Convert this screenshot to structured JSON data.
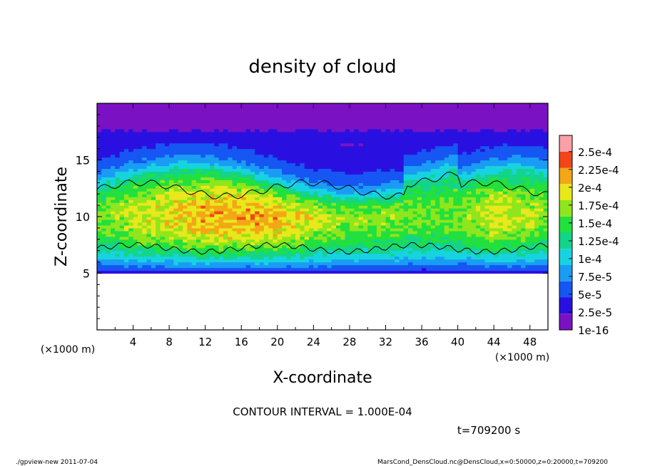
{
  "chart_data": {
    "type": "heatmap",
    "title": "density of cloud",
    "xlabel": "X-coordinate",
    "ylabel": "Z-coordinate",
    "x_unit": "(×1000 m)",
    "z_unit": "(×1000 m)",
    "xlim": [
      0,
      50
    ],
    "zlim": [
      0,
      20
    ],
    "x_ticks": [
      4,
      8,
      12,
      16,
      20,
      24,
      28,
      32,
      36,
      40,
      44,
      48
    ],
    "z_ticks": [
      5,
      10,
      15
    ],
    "grid": false,
    "colorbar": {
      "labels": [
        "1e-16",
        "2.5e-5",
        "5e-5",
        "7.5e-5",
        "1e-4",
        "1.25e-4",
        "1.5e-4",
        "1.75e-4",
        "2e-4",
        "2.25e-4",
        "2.5e-4"
      ],
      "colors": [
        "#7a12c4",
        "#2a10e0",
        "#1656f2",
        "#1a9cf5",
        "#17d3e0",
        "#13d48a",
        "#22e03d",
        "#8fe61c",
        "#e8e81a",
        "#f3a716",
        "#f2461a",
        "#fba0a8"
      ]
    },
    "field": {
      "description_levels": "cloud density, max ~2.1e-4 near z=10 km",
      "cloud_base_z": 5,
      "cloud_core_z": 10,
      "cloud_top_z": 13,
      "upper_haze_z": [
        14,
        20
      ],
      "core_profile": [
        {
          "x": 0,
          "dmax": 0.00015
        },
        {
          "x": 4,
          "dmax": 0.000175
        },
        {
          "x": 8,
          "dmax": 0.00019
        },
        {
          "x": 12,
          "dmax": 0.00021
        },
        {
          "x": 16,
          "dmax": 0.00021
        },
        {
          "x": 20,
          "dmax": 0.000205
        },
        {
          "x": 24,
          "dmax": 0.00018
        },
        {
          "x": 28,
          "dmax": 0.00016
        },
        {
          "x": 32,
          "dmax": 0.000165
        },
        {
          "x": 36,
          "dmax": 0.00015
        },
        {
          "x": 40,
          "dmax": 0.000155
        },
        {
          "x": 44,
          "dmax": 0.00018
        },
        {
          "x": 48,
          "dmax": 0.00017
        },
        {
          "x": 50,
          "dmax": 0.000155
        }
      ]
    },
    "contour_interval_text": "CONTOUR INTERVAL = 1.000E-04",
    "time_text": "t=709200 s"
  },
  "footer": {
    "left": "./gpview-new  2011-07-04",
    "right": "MarsCond_DensCloud.nc@DensCloud,x=0:50000,z=0:20000,t=709200"
  }
}
